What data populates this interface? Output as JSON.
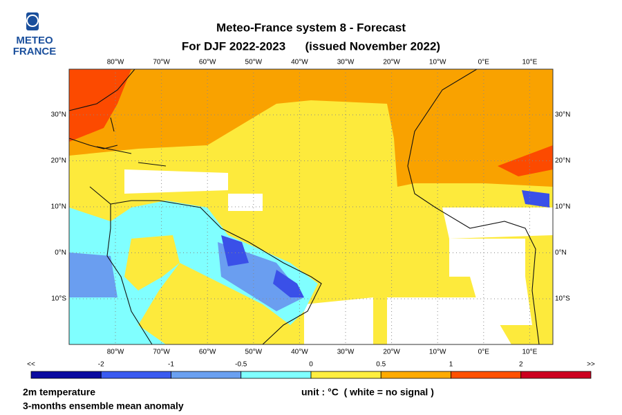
{
  "logo": {
    "line1": "METEO",
    "line2": "FRANCE"
  },
  "header": {
    "line1": "Meteo-France system 8  -  Forecast",
    "line2": "For DJF 2022-2023      (issued November 2022)"
  },
  "map": {
    "lon_labels": [
      "80°W",
      "70°W",
      "60°W",
      "50°W",
      "40°W",
      "30°W",
      "20°W",
      "10°W",
      "0°E",
      "10°E"
    ],
    "lat_labels": [
      "30°N",
      "20°N",
      "10°N",
      "0°N",
      "10°S"
    ]
  },
  "colorbar": {
    "labels": [
      "<<",
      "-2",
      "-1",
      "-0.5",
      "0",
      "0.5",
      "1",
      "2",
      ">>"
    ],
    "colors": [
      "#0a0aa0",
      "#3a5af0",
      "#6aa0f0",
      "#80ffff",
      "#ffee40",
      "#ffaa00",
      "#ff5000",
      "#cc0020"
    ]
  },
  "footer": {
    "variable": "2m temperature",
    "description": "3-months ensemble mean anomaly",
    "unit": "unit : °C  ( white = no signal )"
  }
}
